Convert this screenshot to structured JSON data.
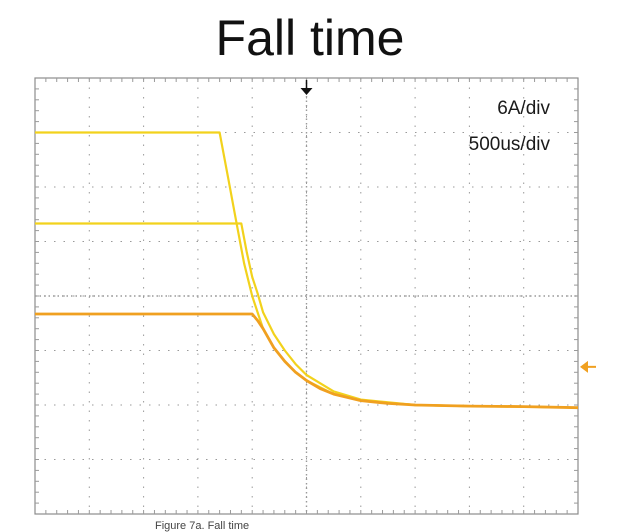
{
  "title": "Fall time",
  "scale": {
    "vertical": "6A/div",
    "horizontal": "500us/div"
  },
  "caption": "Figure 7a. Fall time",
  "colors": {
    "grid": "#9a9a9a",
    "frame": "#8c8c8c",
    "trace_1": "#f2d21c",
    "trace_2": "#f2d21c",
    "trace_3": "#f0a020",
    "marker": "#111111",
    "level_marker": "#f0a020"
  },
  "chart_data": {
    "type": "line",
    "title": "Fall time",
    "xlabel": "",
    "ylabel": "",
    "x_unit": "divisions",
    "y_unit": "divisions",
    "xlim": [
      0,
      10
    ],
    "ylim": [
      -4,
      4
    ],
    "grid": true,
    "graticule": {
      "x_divisions": 10,
      "y_divisions": 8
    },
    "trigger_marker": "top-center",
    "level_marker": "right, at -1.3 div",
    "series": [
      {
        "x": [
          0,
          3.4,
          3.55,
          3.7,
          3.85,
          4.0,
          4.1,
          4.2,
          4.4,
          4.6,
          4.8,
          5.0,
          5.5,
          6.0,
          7.0,
          8.0,
          9.0,
          10.0
        ],
        "values": [
          3.0,
          3.0,
          2.2,
          1.4,
          0.6,
          0.0,
          -0.3,
          -0.6,
          -0.95,
          -1.2,
          -1.4,
          -1.55,
          -1.8,
          -1.92,
          -2.0,
          -2.02,
          -2.03,
          -2.05
        ]
      },
      {
        "x": [
          0,
          3.8,
          3.9,
          4.0,
          4.1,
          4.2,
          4.4,
          4.6,
          4.8,
          5.0,
          5.5,
          6.0,
          7.0,
          8.0,
          9.0,
          10.0
        ],
        "values": [
          1.33,
          1.33,
          0.8,
          0.35,
          0.05,
          -0.3,
          -0.7,
          -1.0,
          -1.25,
          -1.45,
          -1.75,
          -1.9,
          -2.0,
          -2.02,
          -2.03,
          -2.05
        ]
      },
      {
        "x": [
          0,
          4.0,
          4.1,
          4.2,
          4.4,
          4.6,
          4.8,
          5.0,
          5.25,
          5.5,
          6.0,
          6.5,
          7.0,
          8.0,
          9.0,
          10.0
        ],
        "values": [
          -0.33,
          -0.33,
          -0.45,
          -0.6,
          -0.95,
          -1.2,
          -1.4,
          -1.55,
          -1.7,
          -1.8,
          -1.92,
          -1.97,
          -2.0,
          -2.02,
          -2.03,
          -2.05
        ]
      }
    ]
  }
}
